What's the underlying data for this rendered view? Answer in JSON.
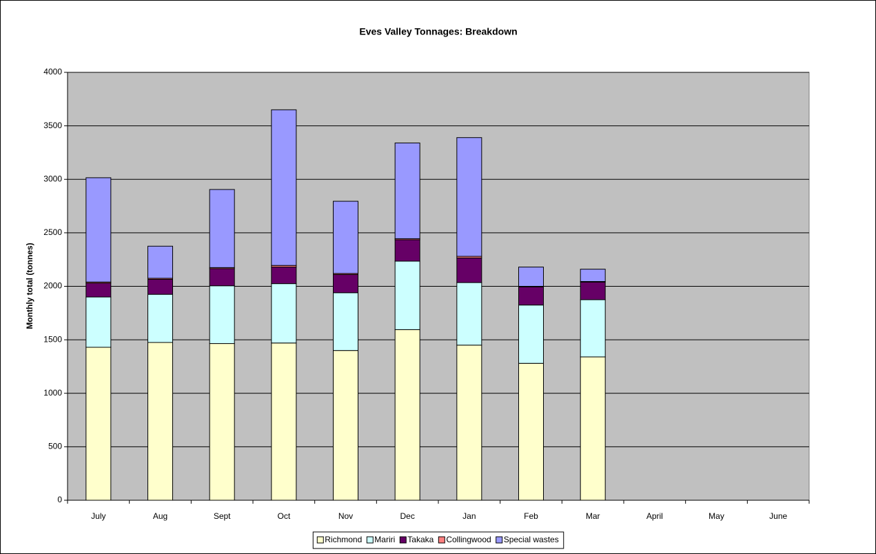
{
  "chart_data": {
    "type": "stacked_bar",
    "title": "Eves Valley Tonnages: Breakdown",
    "y_label": "Monthly total (tonnes)",
    "categories": [
      "July",
      "Aug",
      "Sept",
      "Oct",
      "Nov",
      "Dec",
      "Jan",
      "Feb",
      "Mar",
      "April",
      "May",
      "June"
    ],
    "series": [
      {
        "name": "Richmond",
        "color": "#ffffcc",
        "values": [
          1430,
          1475,
          1465,
          1470,
          1400,
          1595,
          1450,
          1280,
          1340,
          null,
          null,
          null
        ]
      },
      {
        "name": "Mariri",
        "color": "#ccffff",
        "values": [
          470,
          450,
          540,
          555,
          540,
          640,
          585,
          545,
          535,
          null,
          null,
          null
        ]
      },
      {
        "name": "Takaka",
        "color": "#660066",
        "values": [
          130,
          140,
          160,
          155,
          170,
          200,
          230,
          170,
          165,
          null,
          null,
          null
        ]
      },
      {
        "name": "Collingwood",
        "color": "#ff8080",
        "values": [
          10,
          10,
          10,
          15,
          10,
          10,
          15,
          5,
          5,
          null,
          null,
          null
        ]
      },
      {
        "name": "Special wastes",
        "color": "#9999ff",
        "values": [
          975,
          300,
          730,
          1455,
          675,
          895,
          1110,
          180,
          115,
          null,
          null,
          null
        ]
      }
    ],
    "ylim": [
      0,
      4000
    ],
    "yticks": [
      0,
      500,
      1000,
      1500,
      2000,
      2500,
      3000,
      3500,
      4000
    ],
    "grid": true,
    "plot_background": "#c0c0c0",
    "legend": "bottom"
  }
}
